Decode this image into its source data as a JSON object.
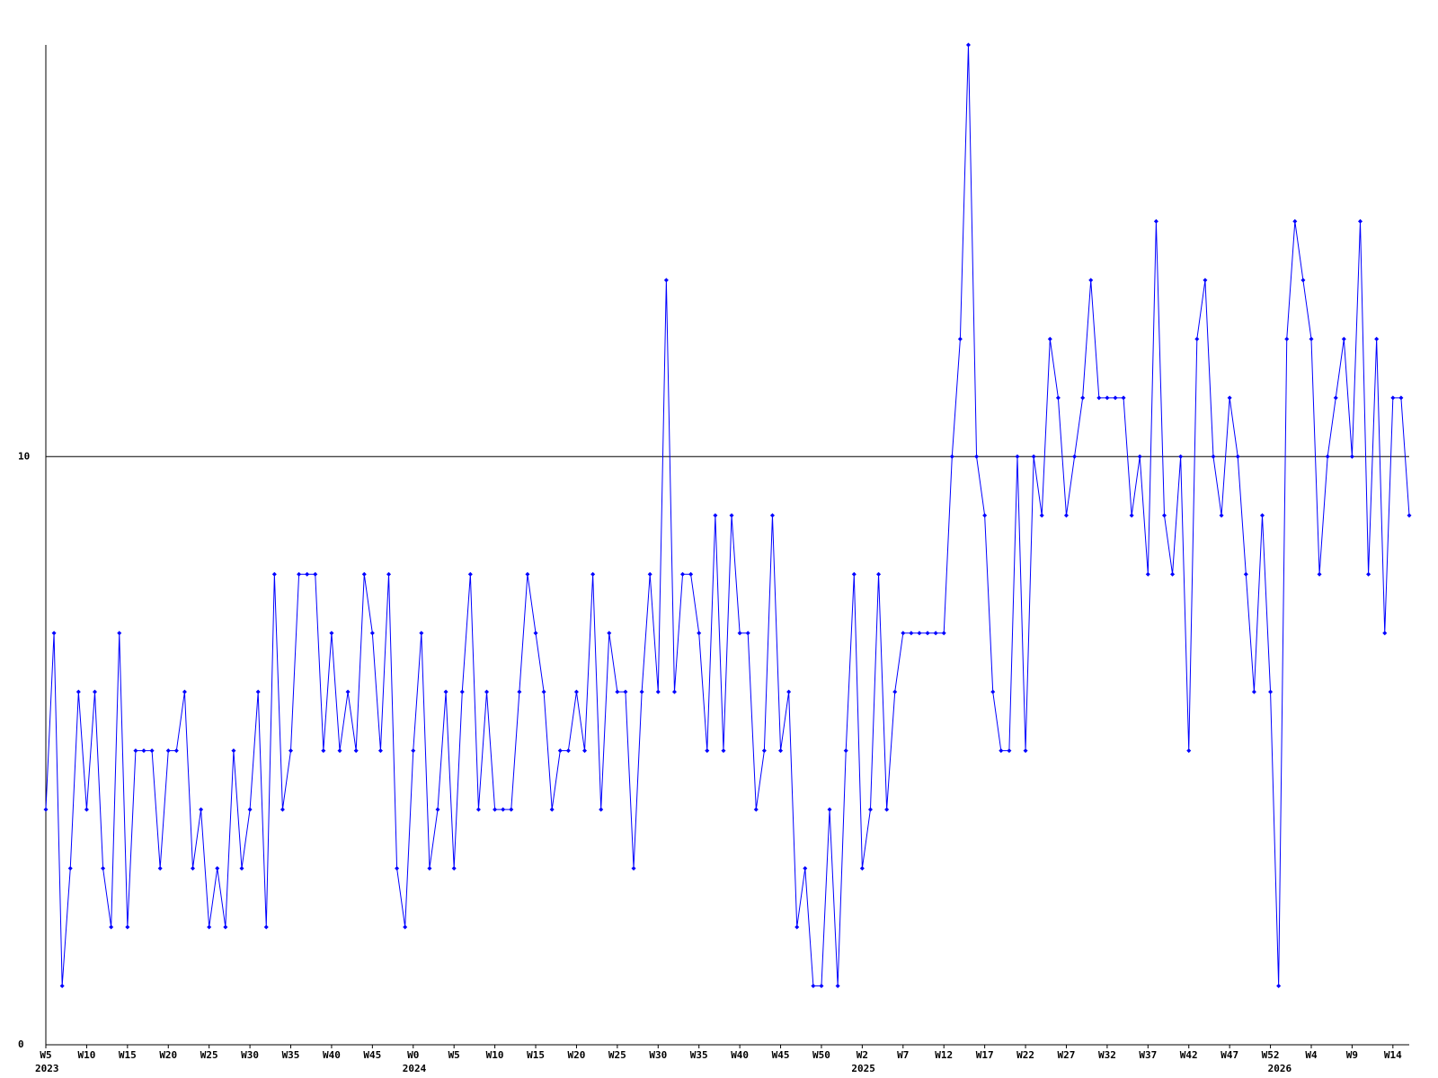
{
  "chart_data": {
    "type": "line",
    "categories": [
      "W5",
      null,
      null,
      null,
      null,
      "W10",
      null,
      null,
      null,
      null,
      "W15",
      null,
      null,
      null,
      null,
      "W20",
      null,
      null,
      null,
      null,
      "W25",
      null,
      null,
      null,
      null,
      "W30",
      null,
      null,
      null,
      null,
      "W35",
      null,
      null,
      null,
      null,
      "W40",
      null,
      null,
      null,
      null,
      "W45",
      null,
      null,
      null,
      null,
      "W0",
      null,
      null,
      null,
      null,
      "W5",
      null,
      null,
      null,
      null,
      "W10",
      null,
      null,
      null,
      null,
      "W15",
      null,
      null,
      null,
      null,
      "W20",
      null,
      null,
      null,
      null,
      "W25",
      null,
      null,
      null,
      null,
      "W30",
      null,
      null,
      null,
      null,
      "W35",
      null,
      null,
      null,
      null,
      "W40",
      null,
      null,
      null,
      null,
      "W45",
      null,
      null,
      null,
      null,
      "W50",
      null,
      null,
      null,
      null,
      "W2",
      null,
      null,
      null,
      null,
      "W7",
      null,
      null,
      null,
      null,
      "W12",
      null,
      null,
      null,
      null,
      "W17",
      null,
      null,
      null,
      null,
      "W22",
      null,
      null,
      null,
      null,
      "W27",
      null,
      null,
      null,
      null,
      "W32",
      null,
      null,
      null,
      null,
      "W37",
      null,
      null,
      null,
      null,
      "W42",
      null,
      null,
      null,
      null,
      "W47",
      null,
      null,
      null,
      null,
      "W52",
      null,
      null,
      null,
      null,
      "W4",
      null,
      null,
      null,
      null,
      "W9",
      null,
      null,
      null,
      null,
      "W14",
      null,
      null
    ],
    "year_labels": [
      "2023",
      null,
      null,
      null,
      null,
      null,
      null,
      null,
      null,
      null,
      null,
      null,
      null,
      null,
      null,
      null,
      null,
      null,
      null,
      null,
      null,
      null,
      null,
      null,
      null,
      null,
      null,
      null,
      null,
      null,
      null,
      null,
      null,
      null,
      null,
      null,
      null,
      null,
      null,
      null,
      null,
      null,
      null,
      null,
      null,
      "2024",
      null,
      null,
      null,
      null,
      null,
      null,
      null,
      null,
      null,
      null,
      null,
      null,
      null,
      null,
      null,
      null,
      null,
      null,
      null,
      null,
      null,
      null,
      null,
      null,
      null,
      null,
      null,
      null,
      null,
      null,
      null,
      null,
      null,
      null,
      null,
      null,
      null,
      null,
      null,
      null,
      null,
      null,
      null,
      null,
      null,
      null,
      null,
      null,
      null,
      null,
      null,
      null,
      null,
      null,
      "2025",
      null,
      null,
      null,
      null,
      null,
      null,
      null,
      null,
      null,
      null,
      null,
      null,
      null,
      null,
      null,
      null,
      null,
      null,
      null,
      null,
      null,
      null,
      null,
      null,
      null,
      null,
      null,
      null,
      null,
      null,
      null,
      null,
      null,
      null,
      null,
      null,
      null,
      null,
      null,
      null,
      null,
      null,
      null,
      null,
      null,
      null,
      null,
      null,
      null,
      null,
      "2026",
      null,
      null,
      null,
      null,
      null,
      null,
      null,
      null,
      null,
      null,
      null,
      null,
      null,
      null,
      null,
      null
    ],
    "series": [
      {
        "color": "#0000ff",
        "values": [
          4,
          7,
          1,
          3,
          6,
          4,
          6,
          3,
          2,
          7,
          2,
          5,
          5,
          5,
          3,
          5,
          5,
          6,
          3,
          4,
          2,
          3,
          2,
          5,
          3,
          4,
          6,
          2,
          8,
          4,
          5,
          8,
          8,
          8,
          5,
          7,
          5,
          6,
          5,
          8,
          7,
          5,
          8,
          3,
          2,
          5,
          7,
          3,
          4,
          6,
          3,
          6,
          8,
          4,
          6,
          4,
          4,
          4,
          6,
          8,
          7,
          6,
          4,
          5,
          5,
          6,
          5,
          8,
          4,
          7,
          6,
          6,
          3,
          6,
          8,
          6,
          13,
          6,
          8,
          8,
          7,
          5,
          9,
          5,
          9,
          7,
          7,
          4,
          5,
          9,
          5,
          6,
          2,
          3,
          1,
          1,
          4,
          1,
          5,
          8,
          3,
          4,
          8,
          4,
          6,
          7,
          7,
          7,
          7,
          7,
          7,
          10,
          12,
          17,
          10,
          9,
          6,
          5,
          5,
          10,
          5,
          10,
          9,
          12,
          11,
          9,
          10,
          11,
          13,
          11,
          11,
          11,
          11,
          9,
          10,
          8,
          14,
          9,
          8,
          10,
          5,
          12,
          13,
          10,
          9,
          11,
          10,
          8,
          6,
          9,
          6,
          1,
          12,
          14,
          13,
          12,
          8,
          10,
          11,
          12,
          10,
          14,
          8,
          12,
          7,
          11,
          11,
          9
        ]
      }
    ],
    "ylim": [
      0,
      17
    ],
    "yticks": [
      0,
      10
    ],
    "grid": true
  }
}
